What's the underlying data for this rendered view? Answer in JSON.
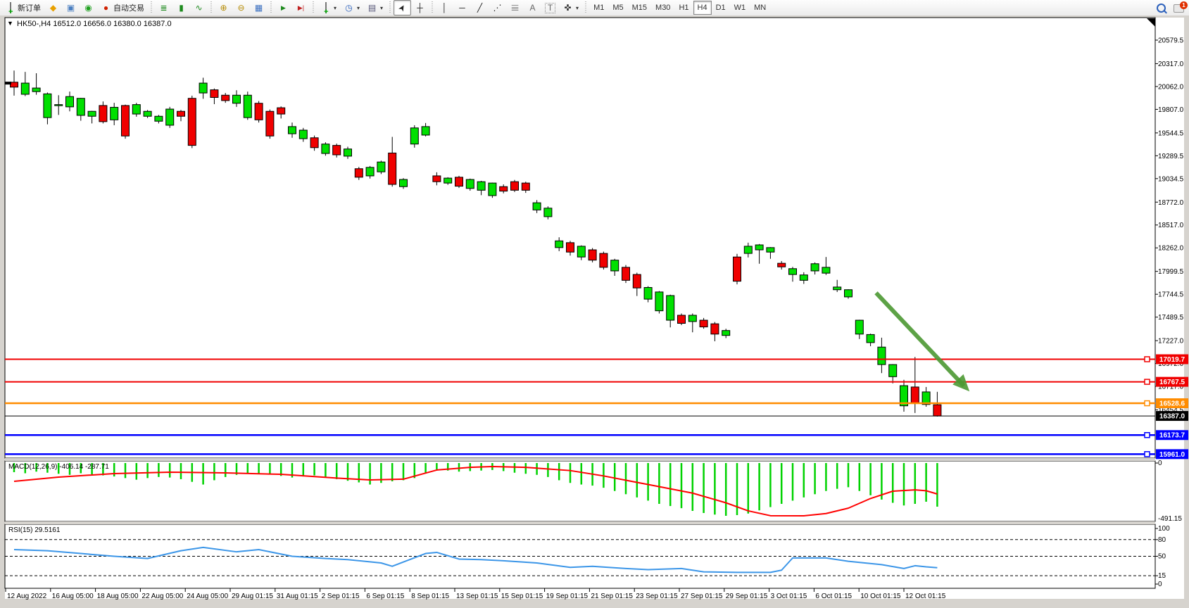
{
  "toolbar": {
    "new_order_label": "新订单",
    "auto_trading_label": "自动交易",
    "timeframes": [
      "M1",
      "M5",
      "M15",
      "M30",
      "H1",
      "H4",
      "D1",
      "W1",
      "MN"
    ],
    "active_timeframe": "H4",
    "notification_badge": "1",
    "glyphs": {
      "bars": "≣",
      "candle": "▮",
      "line": "∿",
      "zoom_in": "⊕",
      "zoom_out": "⊖",
      "tiles": "▦",
      "shift": "▶",
      "end": "▶|",
      "cursor": "➤",
      "crosshair": "┼",
      "vline": "│",
      "hline": "─",
      "trendline": "╱",
      "channel": "⋰",
      "fib": "𝄙",
      "text": "A",
      "label": "T",
      "arrows": "✜",
      "clock": "◷",
      "list": "≡",
      "tpl": "▤",
      "signal": "◉",
      "brush": "◆",
      "screen": "▣",
      "auto_dot": "●"
    }
  },
  "chart_data": {
    "type": "candlestick",
    "title": "HK50-,H4  16512.0 16656.0 16380.0 16387.0",
    "dropdown_glyph": "▼",
    "symbol": "HK50-",
    "period": "H4",
    "last_ohlc": {
      "open": 16512.0,
      "high": 16656.0,
      "low": 16380.0,
      "close": 16387.0
    },
    "colors": {
      "bull": "#00e000",
      "bear": "#f00000",
      "wick": "#000000",
      "macd_hist": "#00d200",
      "macd_signal": "#ff0000",
      "rsi_line": "#3c96e8",
      "arrow": "#4c9933",
      "line_red": "#f00000",
      "line_orange": "#ff8c00",
      "line_blue": "#0000ff",
      "line_black": "#000000"
    },
    "price_axis_ticks": [
      20579.5,
      20317.0,
      20062.0,
      19807.0,
      19544.5,
      19289.5,
      19034.5,
      18772.0,
      18517.0,
      18262.0,
      17999.5,
      17744.5,
      17489.5,
      17227.0,
      16972.0,
      16717.0,
      16454.5
    ],
    "hlines": [
      {
        "value": 17019.7,
        "color": "#f00000",
        "width": 2,
        "handle": true
      },
      {
        "value": 16767.5,
        "color": "#f00000",
        "width": 2,
        "handle": true
      },
      {
        "value": 16528.6,
        "color": "#ff8c00",
        "width": 2.5,
        "handle": true
      },
      {
        "value": 16387.0,
        "color": "#000000",
        "width": 1,
        "handle": false
      },
      {
        "value": 16173.7,
        "color": "#0000ff",
        "width": 2.5,
        "handle": true
      },
      {
        "value": 15961.0,
        "color": "#0000ff",
        "width": 2.5,
        "handle": true
      }
    ],
    "candles": [
      [
        20110,
        20240,
        19960,
        20055
      ],
      [
        19975,
        20225,
        19955,
        20100
      ],
      [
        20005,
        20210,
        19970,
        20045
      ],
      [
        19715,
        19995,
        19640,
        19980
      ],
      [
        19855,
        19965,
        19745,
        19860
      ],
      [
        19835,
        20005,
        19785,
        19950
      ],
      [
        19740,
        19935,
        19680,
        19930
      ],
      [
        19730,
        19790,
        19650,
        19785
      ],
      [
        19850,
        19895,
        19650,
        19670
      ],
      [
        19690,
        19880,
        19630,
        19830
      ],
      [
        19850,
        19860,
        19480,
        19510
      ],
      [
        19755,
        19880,
        19725,
        19860
      ],
      [
        19730,
        19800,
        19710,
        19785
      ],
      [
        19675,
        19745,
        19650,
        19730
      ],
      [
        19630,
        19835,
        19600,
        19810
      ],
      [
        19785,
        19800,
        19675,
        19730
      ],
      [
        19930,
        19960,
        19375,
        19405
      ],
      [
        19990,
        20160,
        19925,
        20100
      ],
      [
        20025,
        20040,
        19865,
        19940
      ],
      [
        19965,
        19990,
        19880,
        19905
      ],
      [
        19875,
        20020,
        19835,
        19965
      ],
      [
        19715,
        20005,
        19690,
        19965
      ],
      [
        19875,
        19900,
        19660,
        19690
      ],
      [
        19785,
        19805,
        19480,
        19510
      ],
      [
        19825,
        19840,
        19705,
        19755
      ],
      [
        19535,
        19660,
        19490,
        19615
      ],
      [
        19480,
        19600,
        19445,
        19575
      ],
      [
        19490,
        19515,
        19345,
        19380
      ],
      [
        19315,
        19440,
        19290,
        19420
      ],
      [
        19405,
        19425,
        19270,
        19300
      ],
      [
        19285,
        19390,
        19255,
        19365
      ],
      [
        19145,
        19165,
        19020,
        19050
      ],
      [
        19065,
        19175,
        19035,
        19160
      ],
      [
        19110,
        19235,
        19085,
        19220
      ],
      [
        19320,
        19500,
        18945,
        18970
      ],
      [
        18945,
        19040,
        18920,
        19025
      ],
      [
        19420,
        19630,
        19380,
        19600
      ],
      [
        19520,
        19655,
        19505,
        19615
      ],
      [
        19065,
        19105,
        18960,
        19000
      ],
      [
        18985,
        19050,
        18965,
        19040
      ],
      [
        19050,
        19065,
        18930,
        18950
      ],
      [
        18925,
        19035,
        18900,
        19025
      ],
      [
        18905,
        19010,
        18850,
        19000
      ],
      [
        18845,
        18990,
        18820,
        18985
      ],
      [
        18945,
        18970,
        18870,
        18895
      ],
      [
        19000,
        19020,
        18885,
        18905
      ],
      [
        18985,
        19000,
        18875,
        18905
      ],
      [
        18685,
        18795,
        18650,
        18765
      ],
      [
        18610,
        18725,
        18580,
        18705
      ],
      [
        18265,
        18380,
        18225,
        18340
      ],
      [
        18320,
        18340,
        18175,
        18215
      ],
      [
        18160,
        18290,
        18125,
        18280
      ],
      [
        18240,
        18260,
        18100,
        18125
      ],
      [
        18200,
        18220,
        18020,
        18045
      ],
      [
        18005,
        18140,
        17950,
        18125
      ],
      [
        18045,
        18070,
        17870,
        17900
      ],
      [
        17965,
        17985,
        17725,
        17815
      ],
      [
        17690,
        17835,
        17655,
        17820
      ],
      [
        17560,
        17780,
        17530,
        17770
      ],
      [
        17455,
        17740,
        17375,
        17730
      ],
      [
        17510,
        17530,
        17400,
        17420
      ],
      [
        17440,
        17530,
        17320,
        17510
      ],
      [
        17455,
        17480,
        17360,
        17380
      ],
      [
        17415,
        17435,
        17220,
        17300
      ],
      [
        17285,
        17360,
        17255,
        17340
      ],
      [
        18160,
        18195,
        17855,
        17890
      ],
      [
        18200,
        18320,
        18155,
        18280
      ],
      [
        18240,
        18305,
        18085,
        18295
      ],
      [
        18215,
        18270,
        18140,
        18265
      ],
      [
        18090,
        18115,
        18020,
        18050
      ],
      [
        17965,
        18050,
        17885,
        18030
      ],
      [
        17900,
        17990,
        17860,
        17960
      ],
      [
        18005,
        18100,
        17965,
        18085
      ],
      [
        17980,
        18160,
        17960,
        18045
      ],
      [
        17795,
        17905,
        17770,
        17825
      ],
      [
        17715,
        17800,
        17695,
        17795
      ],
      [
        17300,
        17460,
        17245,
        17455
      ],
      [
        17205,
        17305,
        17165,
        17295
      ],
      [
        16960,
        17260,
        16865,
        17155
      ],
      [
        16825,
        16965,
        16750,
        16960
      ],
      [
        16500,
        16790,
        16435,
        16725
      ],
      [
        16710,
        17045,
        16420,
        16530
      ],
      [
        16515,
        16710,
        16490,
        16655
      ],
      [
        16512,
        16656,
        16380,
        16387
      ]
    ],
    "macd": {
      "label": "MACD(12,26,9) -406.14 -287.71",
      "params": "12,26,9",
      "main_value": -406.14,
      "signal_value": -287.71,
      "axis_ticks": [
        "0",
        "-491.15"
      ],
      "histogram": [
        -85,
        -95,
        -80,
        -90,
        -100,
        -110,
        -95,
        -105,
        -115,
        -125,
        -140,
        -155,
        -140,
        -130,
        -135,
        -150,
        -175,
        -200,
        -160,
        -130,
        -110,
        -100,
        -95,
        -105,
        -120,
        -135,
        -125,
        -115,
        -130,
        -150,
        -165,
        -180,
        -200,
        -185,
        -170,
        -160,
        -140,
        -90,
        -60,
        -70,
        -80,
        -75,
        -70,
        -65,
        -75,
        -90,
        -100,
        -110,
        -130,
        -160,
        -185,
        -200,
        -210,
        -230,
        -260,
        -290,
        -320,
        -350,
        -380,
        -400,
        -420,
        -445,
        -465,
        -480,
        -491,
        -485,
        -470,
        -440,
        -410,
        -380,
        -350,
        -320,
        -290,
        -260,
        -240,
        -225,
        -260,
        -300,
        -340,
        -370,
        -395,
        -380,
        -360,
        -406
      ],
      "signal_points": [
        [
          0,
          -170
        ],
        [
          4,
          -131
        ],
        [
          9,
          -98
        ],
        [
          14,
          -85
        ],
        [
          19,
          -92
        ],
        [
          24,
          -105
        ],
        [
          29,
          -140
        ],
        [
          32,
          -157
        ],
        [
          35,
          -150
        ],
        [
          38,
          -65
        ],
        [
          41,
          -40
        ],
        [
          43,
          -33
        ],
        [
          46,
          -40
        ],
        [
          50,
          -70
        ],
        [
          53,
          -120
        ],
        [
          57,
          -200
        ],
        [
          61,
          -280
        ],
        [
          64,
          -370
        ],
        [
          66,
          -445
        ],
        [
          68,
          -490
        ],
        [
          71,
          -491
        ],
        [
          73,
          -470
        ],
        [
          75,
          -420
        ],
        [
          77,
          -330
        ],
        [
          79,
          -262
        ],
        [
          81,
          -250
        ],
        [
          82,
          -258
        ],
        [
          83,
          -288
        ]
      ]
    },
    "rsi": {
      "label": "RSI(15) 29.5161",
      "period": 15,
      "value": 29.5161,
      "axis_ticks": [
        100,
        80,
        50,
        15,
        0
      ],
      "dashed_levels": [
        80,
        50,
        15
      ],
      "points": [
        [
          0,
          62
        ],
        [
          3,
          60
        ],
        [
          6,
          55
        ],
        [
          9,
          50
        ],
        [
          12,
          46
        ],
        [
          15,
          60
        ],
        [
          17,
          66
        ],
        [
          20,
          58
        ],
        [
          22,
          62
        ],
        [
          25,
          50
        ],
        [
          28,
          46
        ],
        [
          30,
          44
        ],
        [
          33,
          38
        ],
        [
          34,
          32
        ],
        [
          37,
          55
        ],
        [
          38,
          57
        ],
        [
          40,
          45
        ],
        [
          42,
          44
        ],
        [
          44,
          42
        ],
        [
          47,
          38
        ],
        [
          50,
          30
        ],
        [
          52,
          32
        ],
        [
          55,
          28
        ],
        [
          57,
          26
        ],
        [
          60,
          28
        ],
        [
          62,
          22
        ],
        [
          65,
          21
        ],
        [
          68,
          21
        ],
        [
          69,
          25
        ],
        [
          70,
          47
        ],
        [
          73,
          47
        ],
        [
          75,
          41
        ],
        [
          78,
          35
        ],
        [
          80,
          28
        ],
        [
          81,
          33
        ],
        [
          82,
          31
        ],
        [
          83,
          29.5
        ]
      ]
    },
    "time_labels": [
      "12 Aug 2022",
      "16 Aug 05:00",
      "18 Aug 05:00",
      "22 Aug 05:00",
      "24 Aug 05:00",
      "29 Aug 01:15",
      "31 Aug 01:15",
      "2 Sep 01:15",
      "6 Sep 01:15",
      "8 Sep 01:15",
      "13 Sep 01:15",
      "15 Sep 01:15",
      "19 Sep 01:15",
      "21 Sep 01:15",
      "23 Sep 01:15",
      "27 Sep 01:15",
      "29 Sep 01:15",
      "3 Oct 01:15",
      "6 Oct 01:15",
      "10 Oct 01:15",
      "12 Oct 01:15"
    ],
    "arrow": {
      "from": {
        "bar": 77.5,
        "price": 17760
      },
      "to": {
        "bar": 85.9,
        "price": 16660
      }
    }
  }
}
